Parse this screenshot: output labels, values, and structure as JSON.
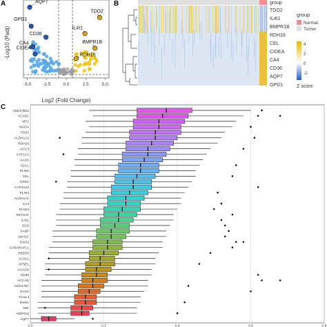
{
  "figure": {
    "panels": [
      "A",
      "B",
      "C"
    ]
  },
  "panel_a": {
    "label": "A",
    "ylabel": "-Log10 (Padj)",
    "xlabel": "Log2 (Fold Change)",
    "x_ticks": [
      "-5.0",
      "-2.5",
      "0.0",
      "2.5",
      "5.0"
    ],
    "gene_labels": [
      "AQP7",
      "GPD1",
      "CD36",
      "CA4",
      "CIDEA",
      "TDO2",
      "IL4I1",
      "BMPR1B",
      "RDH16"
    ]
  },
  "panel_b": {
    "label": "B",
    "rows": [
      "group",
      "TDO2",
      "IL4I1",
      "BMPR1B",
      "RDH16",
      "CEL",
      "CIDEA",
      "CA4",
      "CD36",
      "AQP7",
      "GPD1"
    ],
    "legend_group_title": "group",
    "legend_group_items": [
      "Normal",
      "Tumor"
    ],
    "legend_scale_ticks": [
      "4",
      "2",
      "0",
      "-2"
    ],
    "legend_scale_title": "Z score",
    "colors": {
      "normal": "#f28e93",
      "tumor": "#e0dfe0",
      "high": "#e7b312",
      "mid": "#ffffff",
      "low": "#1f5cc4"
    }
  },
  "panel_c": {
    "label": "C",
    "x_ticks": [
      "0.0",
      "0.2",
      "0.4",
      "0.6",
      "0.8"
    ],
    "genes": [
      "HSD17B11",
      "ACADL",
      "MT1",
      "MAOA",
      "TDO2",
      "ALDH1A1",
      "RDH16",
      "ACC3",
      "CYP1A1",
      "AASS",
      "SGLL",
      "PLIN1",
      "CEL",
      "GPD1",
      "CYP4A22",
      "PLIN4",
      "ALDH1A1",
      "CA4",
      "IGAD3",
      "RETSAT",
      "IL411",
      "SCD",
      "FABP",
      "ADH1C",
      "ENO3",
      "GABARAPL1",
      "REEP6",
      "ACSL1",
      "NT5E1",
      "ACADS",
      "CD36",
      "ACCAD",
      "HSD17B7",
      "ECH1",
      "ACSL4",
      "RXRA",
      "MIF",
      "ADIPOQ",
      "AQP7"
    ],
    "colors": [
      "#e05be0",
      "#d958e8",
      "#d05cf0",
      "#c868f2",
      "#bd72f4",
      "#b27cf6",
      "#a984f7",
      "#9a8ff8",
      "#8c98f8",
      "#7fa2f9",
      "#70aaf8",
      "#62b2f7",
      "#55bbf3",
      "#4ac2ee",
      "#40c8e6",
      "#38cddc",
      "#33d0cf",
      "#35d1c1",
      "#3cd1b1",
      "#45d0a0",
      "#50cf8e",
      "#5ccc7c",
      "#68c86a",
      "#74c35a",
      "#82bd4c",
      "#8eb640",
      "#9aaf36",
      "#a6a72e",
      "#b09e28",
      "#bb9524",
      "#c48b22",
      "#cd8122",
      "#d57624",
      "#db6b2a",
      "#e06032",
      "#e2563c",
      "#e34c48",
      "#e24456",
      "#e03d66"
    ]
  },
  "chart_data": [
    {
      "type": "scatter",
      "panel": "A",
      "xlabel": "Log2 (Fold Change)",
      "ylabel": "-Log10 (Padj)",
      "xlim": [
        -5.5,
        5.5
      ],
      "labelled_points": [
        {
          "gene": "AQP7",
          "x": -4.7,
          "y": 92
        },
        {
          "gene": "GPD1",
          "x": -4.5,
          "y": 66
        },
        {
          "gene": "CD36",
          "x": -2.6,
          "y": 51
        },
        {
          "gene": "CA4",
          "x": -4.3,
          "y": 38
        },
        {
          "gene": "CIDEA",
          "x": -4.0,
          "y": 28
        },
        {
          "gene": "TDO2",
          "x": 4.3,
          "y": 78
        },
        {
          "gene": "IL4I1",
          "x": 2.4,
          "y": 56
        },
        {
          "gene": "BMPR1B",
          "x": 3.7,
          "y": 36
        },
        {
          "gene": "RDH16",
          "x": 1.3,
          "y": 22
        }
      ]
    },
    {
      "type": "heatmap",
      "panel": "B",
      "rows": [
        "TDO2",
        "IL4I1",
        "BMPR1B",
        "RDH16",
        "CEL",
        "CIDEA",
        "CA4",
        "CD36",
        "AQP7",
        "GPD1"
      ],
      "groups": [
        "Normal",
        "Tumor"
      ],
      "legend": "Z score"
    },
    {
      "type": "box",
      "panel": "C",
      "xlim": [
        0.0,
        0.8
      ],
      "x_ticks": [
        0.0,
        0.2,
        0.4,
        0.6,
        0.8
      ],
      "categories": [
        "HSD17B11",
        "ACADL",
        "MT1",
        "MAOA",
        "TDO2",
        "ALDH1A1",
        "RDH16",
        "ACC3",
        "CYP1A1",
        "AASS",
        "SGLL",
        "PLIN1",
        "CEL",
        "GPD1",
        "CYP4A22",
        "PLIN4",
        "ALDH1A1",
        "CA4",
        "IGAD3",
        "RETSAT",
        "IL411",
        "SCD",
        "FABP",
        "ADH1C",
        "ENO3",
        "GABARAPL1",
        "REEP6",
        "ACSL1",
        "NT5E1",
        "ACADS",
        "CD36",
        "ACCAD",
        "HSD17B7",
        "ECH1",
        "ACSL4",
        "RXRA",
        "MIF",
        "ADIPOQ",
        "AQP7"
      ],
      "q1": [
        0.29,
        0.29,
        0.28,
        0.28,
        0.27,
        0.27,
        0.26,
        0.26,
        0.25,
        0.25,
        0.24,
        0.24,
        0.23,
        0.23,
        0.22,
        0.22,
        0.21,
        0.21,
        0.2,
        0.2,
        0.19,
        0.19,
        0.18,
        0.18,
        0.17,
        0.17,
        0.16,
        0.16,
        0.15,
        0.15,
        0.14,
        0.14,
        0.13,
        0.13,
        0.12,
        0.12,
        0.11,
        0.11,
        0.03
      ],
      "median": [
        0.37,
        0.36,
        0.35,
        0.35,
        0.34,
        0.34,
        0.33,
        0.32,
        0.32,
        0.31,
        0.3,
        0.3,
        0.29,
        0.28,
        0.28,
        0.27,
        0.26,
        0.26,
        0.25,
        0.24,
        0.24,
        0.23,
        0.22,
        0.22,
        0.21,
        0.21,
        0.2,
        0.19,
        0.19,
        0.18,
        0.18,
        0.17,
        0.17,
        0.16,
        0.15,
        0.15,
        0.14,
        0.14,
        0.05
      ],
      "q3": [
        0.44,
        0.43,
        0.42,
        0.41,
        0.41,
        0.4,
        0.39,
        0.38,
        0.37,
        0.36,
        0.35,
        0.35,
        0.34,
        0.33,
        0.33,
        0.32,
        0.31,
        0.3,
        0.3,
        0.29,
        0.28,
        0.27,
        0.27,
        0.26,
        0.25,
        0.25,
        0.24,
        0.23,
        0.23,
        0.22,
        0.21,
        0.21,
        0.2,
        0.19,
        0.18,
        0.18,
        0.17,
        0.16,
        0.07
      ],
      "whisker_low": [
        0.16,
        0.17,
        0.15,
        0.16,
        0.15,
        0.14,
        0.14,
        0.13,
        0.13,
        0.12,
        0.12,
        0.11,
        0.11,
        0.1,
        0.1,
        0.09,
        0.09,
        0.08,
        0.08,
        0.07,
        0.07,
        0.07,
        0.06,
        0.06,
        0.06,
        0.05,
        0.05,
        0.05,
        0.04,
        0.04,
        0.04,
        0.03,
        0.03,
        0.03,
        0.03,
        0.02,
        0.02,
        0.02,
        0.0
      ],
      "whisker_high": [
        0.6,
        0.58,
        0.56,
        0.55,
        0.53,
        0.52,
        0.51,
        0.49,
        0.48,
        0.47,
        0.46,
        0.45,
        0.45,
        0.44,
        0.43,
        0.42,
        0.41,
        0.41,
        0.4,
        0.39,
        0.39,
        0.38,
        0.37,
        0.37,
        0.36,
        0.36,
        0.35,
        0.34,
        0.34,
        0.33,
        0.33,
        0.32,
        0.32,
        0.31,
        0.3,
        0.3,
        0.29,
        0.29,
        0.12
      ],
      "outliers": [
        [
          0.63
        ],
        [
          0.62,
          0.68
        ],
        [],
        [
          0.6
        ],
        [],
        [
          0.61,
          0.08
        ],
        [],
        [
          0.58
        ],
        [
          0.09
        ],
        [],
        [
          0.56
        ],
        [],
        [
          0.55
        ],
        [
          0.07
        ],
        [
          0.62
        ],
        [
          0.51
        ],
        [],
        [
          0.52
        ],
        [
          0.5
        ],
        [
          0.55
        ],
        [
          0.52
        ],
        [
          0.53
        ],
        [
          0.54
        ],
        [
          0.53
        ],
        [
          0.56,
          0.58
        ],
        [
          0.55
        ],
        [
          0.49
        ],
        [
          0.05
        ],
        [
          0.46
        ],
        [
          0.05
        ],
        [
          0.62
        ],
        [
          0.63,
          0.68
        ],
        [
          0.43
        ],
        [
          0.6
        ],
        [],
        [
          0.42
        ],
        [
          0.04
        ],
        [
          0.4
        ],
        [
          0.17
        ]
      ]
    }
  ]
}
